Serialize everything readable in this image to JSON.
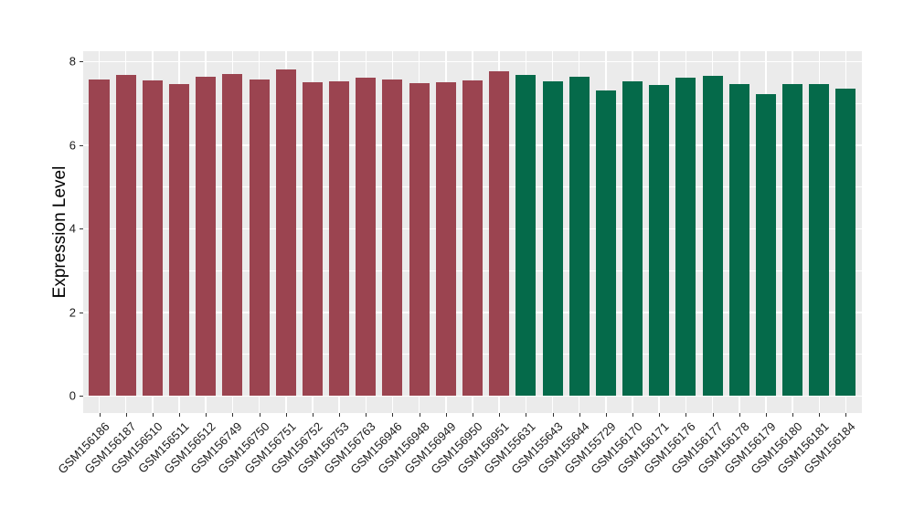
{
  "chart_data": {
    "type": "bar",
    "title": "",
    "xlabel": "",
    "ylabel": "Expression Level",
    "ylim": [
      0,
      8
    ],
    "display_range": [
      -0.41,
      8.25
    ],
    "yticks_major": [
      0,
      2,
      4,
      6,
      8
    ],
    "yticks_minor": [
      1,
      3,
      5,
      7
    ],
    "grid": true,
    "legend_position": "none",
    "panel_background": "#EBEBEB",
    "grid_color": "#FFFFFF",
    "tick_color": "#333333",
    "axis_text_color": "#1a1a1a",
    "categories": [
      "GSM156186",
      "GSM156187",
      "GSM156510",
      "GSM156511",
      "GSM156512",
      "GSM156749",
      "GSM156750",
      "GSM156751",
      "GSM156752",
      "GSM156753",
      "GSM156763",
      "GSM156946",
      "GSM156948",
      "GSM156949",
      "GSM156950",
      "GSM156951",
      "GSM155631",
      "GSM155643",
      "GSM155644",
      "GSM155729",
      "GSM156170",
      "GSM156171",
      "GSM156176",
      "GSM156177",
      "GSM156178",
      "GSM156179",
      "GSM156180",
      "GSM156181",
      "GSM156184"
    ],
    "values": [
      7.57,
      7.69,
      7.54,
      7.47,
      7.63,
      7.7,
      7.58,
      7.82,
      7.5,
      7.52,
      7.61,
      7.57,
      7.49,
      7.51,
      7.54,
      7.77,
      7.69,
      7.52,
      7.64,
      7.31,
      7.53,
      7.45,
      7.62,
      7.67,
      7.47,
      7.22,
      7.46,
      7.46,
      7.36
    ],
    "groups": [
      "group1",
      "group1",
      "group1",
      "group1",
      "group1",
      "group1",
      "group1",
      "group1",
      "group1",
      "group1",
      "group1",
      "group1",
      "group1",
      "group1",
      "group1",
      "group1",
      "group2",
      "group2",
      "group2",
      "group2",
      "group2",
      "group2",
      "group2",
      "group2",
      "group2",
      "group2",
      "group2",
      "group2",
      "group2"
    ],
    "group_colors": {
      "group1": "#9B4450",
      "group2": "#056A4A"
    }
  }
}
